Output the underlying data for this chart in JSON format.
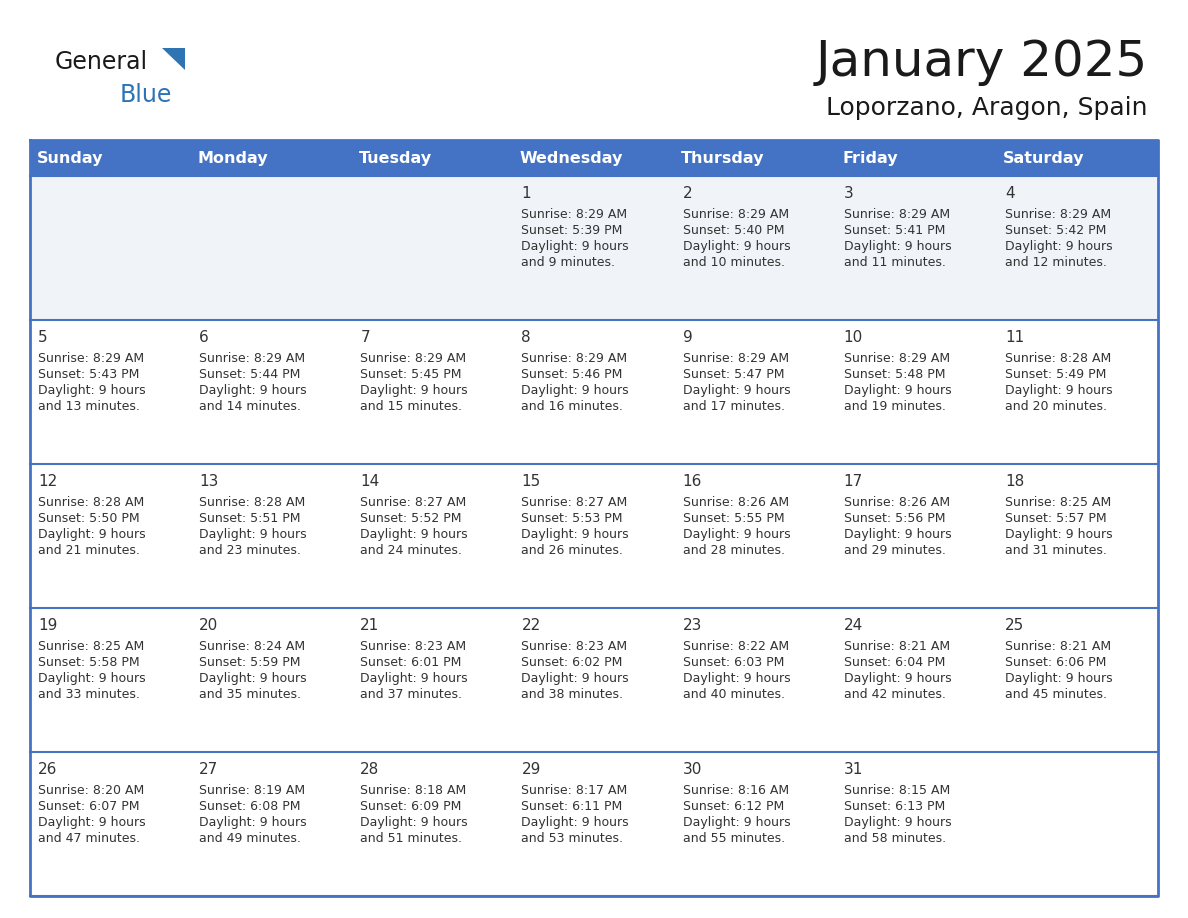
{
  "title": "January 2025",
  "subtitle": "Loporzano, Aragon, Spain",
  "header_bg": "#4472C4",
  "header_text_color": "#FFFFFF",
  "cell_bg": "#FFFFFF",
  "row1_bg": "#F0F4F8",
  "border_color": "#4472C4",
  "day_names": [
    "Sunday",
    "Monday",
    "Tuesday",
    "Wednesday",
    "Thursday",
    "Friday",
    "Saturday"
  ],
  "title_color": "#1a1a1a",
  "subtitle_color": "#1a1a1a",
  "general_color": "#333333",
  "logo_general_color": "#1a1a1a",
  "logo_blue_color": "#2E74B5",
  "logo_triangle_color": "#2E74B5",
  "calendar": [
    [
      null,
      null,
      null,
      {
        "day": 1,
        "sunrise": "8:29 AM",
        "sunset": "5:39 PM",
        "daylight": "9 hours and 9 minutes."
      },
      {
        "day": 2,
        "sunrise": "8:29 AM",
        "sunset": "5:40 PM",
        "daylight": "9 hours and 10 minutes."
      },
      {
        "day": 3,
        "sunrise": "8:29 AM",
        "sunset": "5:41 PM",
        "daylight": "9 hours and 11 minutes."
      },
      {
        "day": 4,
        "sunrise": "8:29 AM",
        "sunset": "5:42 PM",
        "daylight": "9 hours and 12 minutes."
      }
    ],
    [
      {
        "day": 5,
        "sunrise": "8:29 AM",
        "sunset": "5:43 PM",
        "daylight": "9 hours and 13 minutes."
      },
      {
        "day": 6,
        "sunrise": "8:29 AM",
        "sunset": "5:44 PM",
        "daylight": "9 hours and 14 minutes."
      },
      {
        "day": 7,
        "sunrise": "8:29 AM",
        "sunset": "5:45 PM",
        "daylight": "9 hours and 15 minutes."
      },
      {
        "day": 8,
        "sunrise": "8:29 AM",
        "sunset": "5:46 PM",
        "daylight": "9 hours and 16 minutes."
      },
      {
        "day": 9,
        "sunrise": "8:29 AM",
        "sunset": "5:47 PM",
        "daylight": "9 hours and 17 minutes."
      },
      {
        "day": 10,
        "sunrise": "8:29 AM",
        "sunset": "5:48 PM",
        "daylight": "9 hours and 19 minutes."
      },
      {
        "day": 11,
        "sunrise": "8:28 AM",
        "sunset": "5:49 PM",
        "daylight": "9 hours and 20 minutes."
      }
    ],
    [
      {
        "day": 12,
        "sunrise": "8:28 AM",
        "sunset": "5:50 PM",
        "daylight": "9 hours and 21 minutes."
      },
      {
        "day": 13,
        "sunrise": "8:28 AM",
        "sunset": "5:51 PM",
        "daylight": "9 hours and 23 minutes."
      },
      {
        "day": 14,
        "sunrise": "8:27 AM",
        "sunset": "5:52 PM",
        "daylight": "9 hours and 24 minutes."
      },
      {
        "day": 15,
        "sunrise": "8:27 AM",
        "sunset": "5:53 PM",
        "daylight": "9 hours and 26 minutes."
      },
      {
        "day": 16,
        "sunrise": "8:26 AM",
        "sunset": "5:55 PM",
        "daylight": "9 hours and 28 minutes."
      },
      {
        "day": 17,
        "sunrise": "8:26 AM",
        "sunset": "5:56 PM",
        "daylight": "9 hours and 29 minutes."
      },
      {
        "day": 18,
        "sunrise": "8:25 AM",
        "sunset": "5:57 PM",
        "daylight": "9 hours and 31 minutes."
      }
    ],
    [
      {
        "day": 19,
        "sunrise": "8:25 AM",
        "sunset": "5:58 PM",
        "daylight": "9 hours and 33 minutes."
      },
      {
        "day": 20,
        "sunrise": "8:24 AM",
        "sunset": "5:59 PM",
        "daylight": "9 hours and 35 minutes."
      },
      {
        "day": 21,
        "sunrise": "8:23 AM",
        "sunset": "6:01 PM",
        "daylight": "9 hours and 37 minutes."
      },
      {
        "day": 22,
        "sunrise": "8:23 AM",
        "sunset": "6:02 PM",
        "daylight": "9 hours and 38 minutes."
      },
      {
        "day": 23,
        "sunrise": "8:22 AM",
        "sunset": "6:03 PM",
        "daylight": "9 hours and 40 minutes."
      },
      {
        "day": 24,
        "sunrise": "8:21 AM",
        "sunset": "6:04 PM",
        "daylight": "9 hours and 42 minutes."
      },
      {
        "day": 25,
        "sunrise": "8:21 AM",
        "sunset": "6:06 PM",
        "daylight": "9 hours and 45 minutes."
      }
    ],
    [
      {
        "day": 26,
        "sunrise": "8:20 AM",
        "sunset": "6:07 PM",
        "daylight": "9 hours and 47 minutes."
      },
      {
        "day": 27,
        "sunrise": "8:19 AM",
        "sunset": "6:08 PM",
        "daylight": "9 hours and 49 minutes."
      },
      {
        "day": 28,
        "sunrise": "8:18 AM",
        "sunset": "6:09 PM",
        "daylight": "9 hours and 51 minutes."
      },
      {
        "day": 29,
        "sunrise": "8:17 AM",
        "sunset": "6:11 PM",
        "daylight": "9 hours and 53 minutes."
      },
      {
        "day": 30,
        "sunrise": "8:16 AM",
        "sunset": "6:12 PM",
        "daylight": "9 hours and 55 minutes."
      },
      {
        "day": 31,
        "sunrise": "8:15 AM",
        "sunset": "6:13 PM",
        "daylight": "9 hours and 58 minutes."
      },
      null
    ]
  ]
}
